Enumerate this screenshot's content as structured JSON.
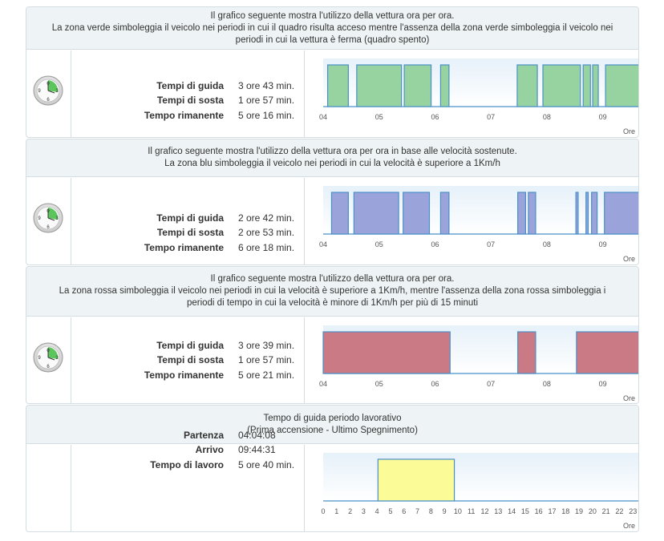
{
  "panels": [
    {
      "header": [
        "Il grafico seguente mostra l'utilizzo della vettura ora per ora.",
        "La zona verde simboleggia il veicolo nei periodi in cui il quadro risulta acceso mentre l'assenza della zona verde simboleggia il veicolo nei",
        "periodi in cui la vettura è ferma (quadro spento)"
      ],
      "stats": [
        {
          "label": "Tempi di guida",
          "value": "3 ore 43 min."
        },
        {
          "label": "Tempi di sosta",
          "value": "1 ore 57 min."
        },
        {
          "label": "Tempo rimanente",
          "value": "5 ore 16 min."
        }
      ],
      "show_clock": true
    },
    {
      "header": [
        "Il grafico seguente mostra l'utilizzo della vettura ora per ora in base alle velocità sostenute.",
        "La zona blu simboleggia il veicolo nei periodi in cui la velocità è superiore a 1Km/h"
      ],
      "stats": [
        {
          "label": "Tempi di guida",
          "value": "2 ore 42 min."
        },
        {
          "label": "Tempi di sosta",
          "value": "2 ore 53 min."
        },
        {
          "label": "Tempo rimanente",
          "value": "6 ore 18 min."
        }
      ],
      "show_clock": true
    },
    {
      "header": [
        "Il grafico seguente mostra l'utilizzo della vettura ora per ora.",
        "La zona rossa simboleggia il veicolo nei periodi in cui la velocità è superiore a 1Km/h, mentre l'assenza della zona rossa simboleggia i",
        "periodi di tempo in cui la velocità è minore di 1Km/h per più di 15 minuti"
      ],
      "stats": [
        {
          "label": "Tempi di guida",
          "value": "3 ore 39 min."
        },
        {
          "label": "Tempi di sosta",
          "value": "1 ore 57 min."
        },
        {
          "label": "Tempo rimanente",
          "value": "5 ore 21 min."
        }
      ],
      "show_clock": true
    },
    {
      "header": [
        "Tempo di guida periodo lavorativo",
        "(Prima accensione - Ultimo Spegnimento)"
      ],
      "stats": [
        {
          "label": "Partenza",
          "value": "04:04:08"
        },
        {
          "label": "Arrivo",
          "value": "09:44:31"
        },
        {
          "label": "Tempo di lavoro",
          "value": "5 ore 40 min."
        }
      ],
      "show_clock": false
    }
  ],
  "colors": {
    "green": "#97d3a0",
    "blue": "#9aa4da",
    "red": "#c97a85",
    "yellow": "#fbfb98",
    "line": "#4a90c8",
    "plot_bg_top": "#e6f1f9",
    "plot_bg_bottom": "#ffffff"
  },
  "chart_data": [
    {
      "type": "area",
      "series": [
        {
          "values": [
            [
              4.08,
              4.45
            ],
            [
              4.6,
              5.4
            ],
            [
              5.45,
              5.93
            ],
            [
              6.1,
              6.25
            ],
            [
              7.47,
              7.83
            ],
            [
              7.93,
              8.6
            ],
            [
              8.65,
              8.78
            ],
            [
              8.82,
              8.92
            ],
            [
              9.05,
              9.78
            ]
          ]
        }
      ],
      "x_unit": "hour",
      "xlim": [
        4,
        9.78
      ],
      "xticks": [
        "04",
        "05",
        "06",
        "07",
        "08",
        "09"
      ],
      "xlabel": "Ore"
    },
    {
      "type": "area",
      "series": [
        {
          "values": [
            [
              4.15,
              4.45
            ],
            [
              4.55,
              5.35
            ],
            [
              5.43,
              5.9
            ],
            [
              6.1,
              6.25
            ],
            [
              7.48,
              7.62
            ],
            [
              7.67,
              7.8
            ],
            [
              8.52,
              8.56
            ],
            [
              8.7,
              8.74
            ],
            [
              8.8,
              8.9
            ],
            [
              9.03,
              9.78
            ]
          ]
        }
      ],
      "x_unit": "hour",
      "xlim": [
        4,
        9.78
      ],
      "xticks": [
        "04",
        "05",
        "06",
        "07",
        "08",
        "09"
      ],
      "xlabel": "Ore"
    },
    {
      "type": "area",
      "series": [
        {
          "values": [
            [
              4.0,
              6.27
            ],
            [
              7.48,
              7.8
            ],
            [
              8.53,
              9.78
            ]
          ]
        }
      ],
      "x_unit": "hour",
      "xlim": [
        4,
        9.78
      ],
      "xticks": [
        "04",
        "05",
        "06",
        "07",
        "08",
        "09"
      ],
      "xlabel": "Ore"
    },
    {
      "type": "area",
      "series": [
        {
          "values": [
            [
              4.07,
              9.74
            ]
          ]
        }
      ],
      "x_unit": "hour",
      "xlim": [
        0,
        24
      ],
      "xticks": [
        "0",
        "1",
        "2",
        "3",
        "4",
        "5",
        "6",
        "7",
        "8",
        "9",
        "10",
        "11",
        "12",
        "13",
        "14",
        "15",
        "16",
        "17",
        "18",
        "19",
        "20",
        "21",
        "22",
        "23"
      ],
      "xlabel": "Ore"
    }
  ]
}
